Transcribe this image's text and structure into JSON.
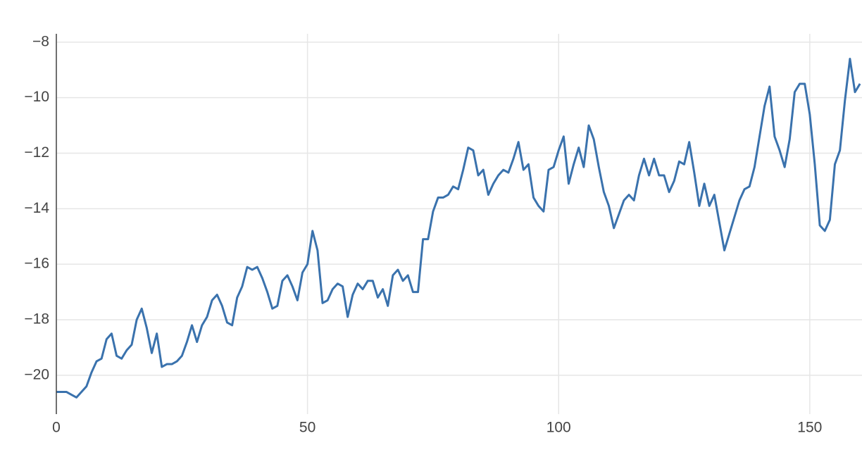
{
  "chart_data": {
    "type": "line",
    "x": [
      0,
      1,
      2,
      3,
      4,
      5,
      6,
      7,
      8,
      9,
      10,
      11,
      12,
      13,
      14,
      15,
      16,
      17,
      18,
      19,
      20,
      21,
      22,
      23,
      24,
      25,
      26,
      27,
      28,
      29,
      30,
      31,
      32,
      33,
      34,
      35,
      36,
      37,
      38,
      39,
      40,
      41,
      42,
      43,
      44,
      45,
      46,
      47,
      48,
      49,
      50,
      51,
      52,
      53,
      54,
      55,
      56,
      57,
      58,
      59,
      60,
      61,
      62,
      63,
      64,
      65,
      66,
      67,
      68,
      69,
      70,
      71,
      72,
      73,
      74,
      75,
      76,
      77,
      78,
      79,
      80,
      81,
      82,
      83,
      84,
      85,
      86,
      87,
      88,
      89,
      90,
      91,
      92,
      93,
      94,
      95,
      96,
      97,
      98,
      99,
      100,
      101,
      102,
      103,
      104,
      105,
      106,
      107,
      108,
      109,
      110,
      111,
      112,
      113,
      114,
      115,
      116,
      117,
      118,
      119,
      120,
      121,
      122,
      123,
      124,
      125,
      126,
      127,
      128,
      129,
      130,
      131,
      132,
      133,
      134,
      135,
      136,
      137,
      138,
      139,
      140,
      141,
      142,
      143,
      144,
      145,
      146,
      147,
      148,
      149,
      150,
      151,
      152,
      153,
      154,
      155,
      156,
      157,
      158,
      159,
      160
    ],
    "series": [
      {
        "color": "#3a72ad",
        "values": [
          -20.6,
          -20.6,
          -20.6,
          -20.7,
          -20.8,
          -20.6,
          -20.4,
          -19.9,
          -19.5,
          -19.4,
          -18.7,
          -18.5,
          -19.3,
          -19.4,
          -19.1,
          -18.9,
          -18.0,
          -17.6,
          -18.3,
          -19.2,
          -18.5,
          -19.7,
          -19.6,
          -19.6,
          -19.5,
          -19.3,
          -18.8,
          -18.2,
          -18.8,
          -18.2,
          -17.9,
          -17.3,
          -17.1,
          -17.5,
          -18.1,
          -18.2,
          -17.2,
          -16.8,
          -16.1,
          -16.2,
          -16.1,
          -16.5,
          -17.0,
          -17.6,
          -17.5,
          -16.6,
          -16.4,
          -16.8,
          -17.3,
          -16.3,
          -16.0,
          -14.8,
          -15.5,
          -17.4,
          -17.3,
          -16.9,
          -16.7,
          -16.8,
          -17.9,
          -17.1,
          -16.7,
          -16.9,
          -16.6,
          -16.6,
          -17.2,
          -16.9,
          -17.5,
          -16.4,
          -16.2,
          -16.6,
          -16.4,
          -17.0,
          -17.0,
          -15.1,
          -15.1,
          -14.1,
          -13.6,
          -13.6,
          -13.5,
          -13.2,
          -13.3,
          -12.6,
          -11.8,
          -11.9,
          -12.8,
          -12.6,
          -13.5,
          -13.1,
          -12.8,
          -12.6,
          -12.7,
          -12.2,
          -11.6,
          -12.6,
          -12.4,
          -13.6,
          -13.9,
          -14.1,
          -12.6,
          -12.5,
          -11.9,
          -11.4,
          -13.1,
          -12.4,
          -11.8,
          -12.5,
          -11.0,
          -11.5,
          -12.5,
          -13.4,
          -13.9,
          -14.7,
          -14.2,
          -13.7,
          -13.5,
          -13.7,
          -12.8,
          -12.2,
          -12.8,
          -12.2,
          -12.8,
          -12.8,
          -13.4,
          -13.0,
          -12.3,
          -12.4,
          -11.6,
          -12.7,
          -13.9,
          -13.1,
          -13.9,
          -13.5,
          -14.5,
          -15.5,
          -14.9,
          -14.3,
          -13.7,
          -13.3,
          -13.2,
          -12.5,
          -11.4,
          -10.3,
          -9.6,
          -11.4,
          -11.9,
          -12.5,
          -11.5,
          -9.8,
          -9.5,
          -9.5,
          -10.6,
          -12.4,
          -14.6,
          -14.8,
          -14.4,
          -12.4,
          -11.9,
          -10.1,
          -8.6,
          -9.8,
          -9.5
        ]
      }
    ],
    "xlim": [
      0,
      160.4
    ],
    "ylim": [
      -21.4,
      -7.7
    ],
    "xticks": [
      0,
      50,
      100,
      150
    ],
    "yticks": [
      {
        "value": -20,
        "label": "−20"
      },
      {
        "value": -18,
        "label": "−18"
      },
      {
        "value": -16,
        "label": "−16"
      },
      {
        "value": -14,
        "label": "−14"
      },
      {
        "value": -12,
        "label": "−12"
      },
      {
        "value": -10,
        "label": "−10"
      },
      {
        "value": -8,
        "label": "−8"
      }
    ],
    "grid": true
  }
}
